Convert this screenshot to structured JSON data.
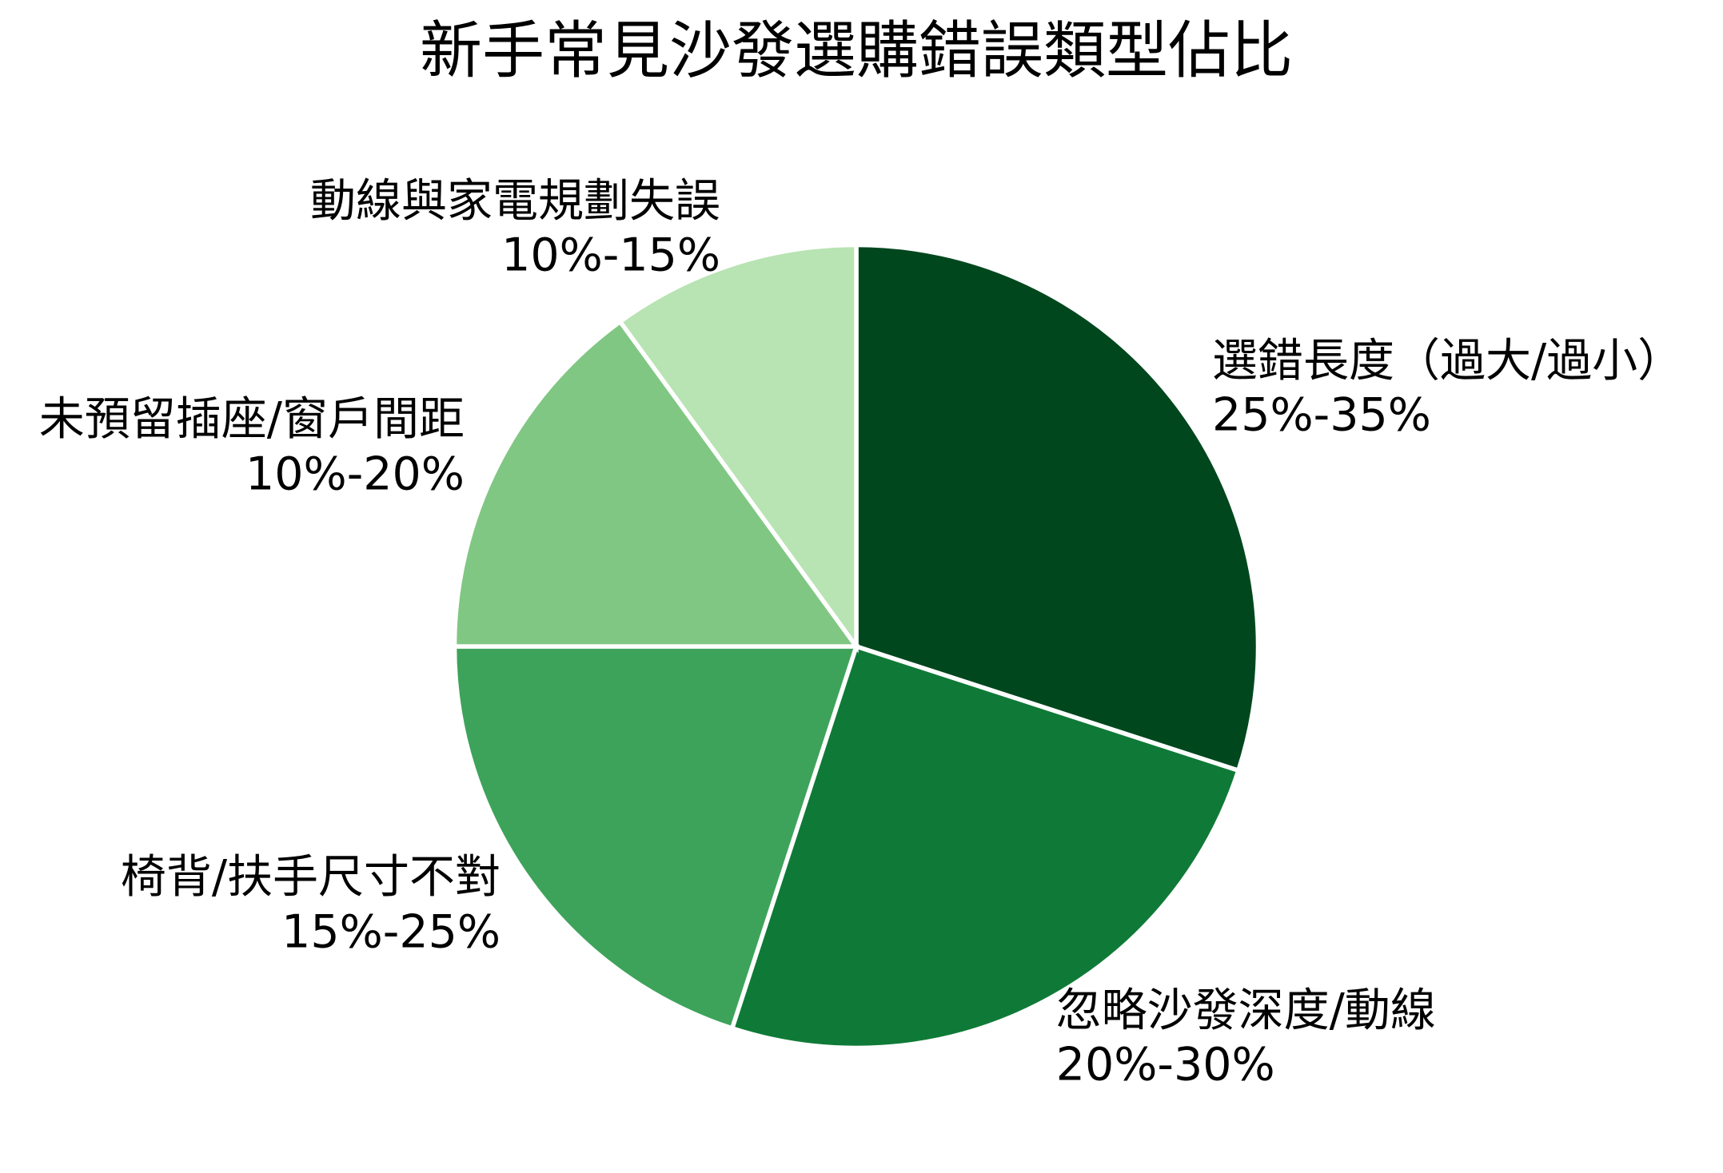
{
  "chart_data": {
    "type": "pie",
    "title": "新手常見沙發選購錯誤類型佔比",
    "categories": [
      "選錯長度（過大/過小）",
      "忽略沙發深度/動線",
      "椅背/扶手尺寸不對",
      "未預留插座/窗戶間距",
      "動線與家電規劃失誤"
    ],
    "values": [
      30,
      25,
      20,
      15,
      10
    ],
    "ranges": [
      "25%-35%",
      "20%-30%",
      "15%-25%",
      "10%-20%",
      "10%-15%"
    ],
    "colors": [
      "#00471e",
      "#0f7a37",
      "#3ea35a",
      "#80c783",
      "#b8e3b3"
    ],
    "start_angle": 90,
    "direction": "clockwise",
    "edge_color": "#ffffff",
    "label_distance": 1.1,
    "legend": "none",
    "grid": false
  },
  "slices": [
    {
      "name": "選錯長度（過大/過小）",
      "range": "25%-35%"
    },
    {
      "name": "忽略沙發深度/動線",
      "range": "20%-30%"
    },
    {
      "name": "椅背/扶手尺寸不對",
      "range": "15%-25%"
    },
    {
      "name": "未預留插座/窗戶間距",
      "range": "10%-20%"
    },
    {
      "name": "動線與家電規劃失誤",
      "range": "10%-15%"
    }
  ]
}
